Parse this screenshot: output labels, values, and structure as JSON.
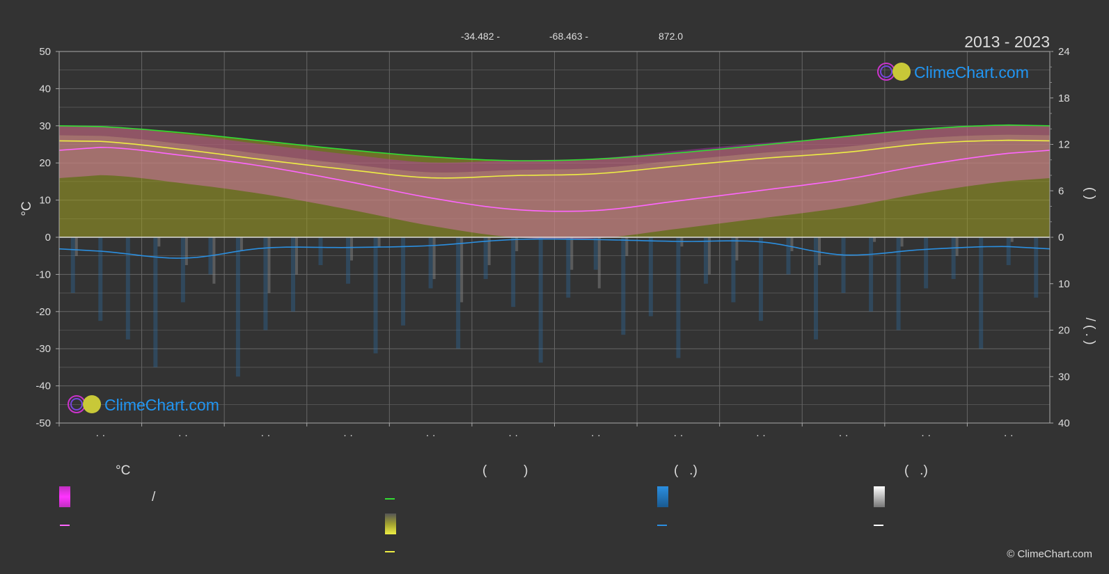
{
  "header": {
    "latitude": "-34.482 -",
    "longitude": "-68.463 -",
    "elevation": "872.0",
    "period": "2013 - 2023"
  },
  "brand": {
    "logo_text": "ClimeChart.com",
    "copyright": "© ClimeChart.com"
  },
  "colors": {
    "background": "#333333",
    "grid": "#666666",
    "sunshine_line": "#33dd33",
    "daylight_area": "#a0a020",
    "temp_line": "#ff66ff",
    "max_temp_line": "#eeee44",
    "precip_line": "#2b8fe0",
    "logo_blue": "#2196f3"
  },
  "legend": {
    "temp_heading": "°C",
    "sun_heading": "(          )",
    "rain_heading": "(   .)",
    "snow_heading": "(   .)",
    "range_slash": "/"
  },
  "chart_data": {
    "type": "area",
    "xlabel": "",
    "ylabel_left": "°C",
    "ylabel_right_upper": "(  )",
    "ylabel_right_lower": "/  (  .  )",
    "x_tick_labels": [
      "· ·",
      "· ·",
      "· ·",
      "· ·",
      "· ·",
      "· ·",
      "· ·",
      "· ·",
      "· ·",
      "· ·",
      "· ·",
      "· ·"
    ],
    "y_left_ticks": [
      50,
      40,
      30,
      20,
      10,
      0,
      -10,
      -20,
      -30,
      -40,
      -50
    ],
    "y_right_upper_ticks": [
      24,
      18,
      12,
      6,
      0
    ],
    "y_right_lower_ticks": [
      0,
      10,
      20,
      30,
      40
    ],
    "ylim_left": [
      -50,
      50
    ],
    "ylim_right_upper": [
      0,
      24
    ],
    "ylim_right_lower": [
      40,
      0
    ],
    "grid": true,
    "months_x": [
      0.5,
      1.5,
      2.5,
      3.5,
      4.5,
      5.5,
      6.5,
      7.5,
      8.5,
      9.5,
      10.5,
      11.5
    ],
    "series": [
      {
        "name": "",
        "unit": "°C",
        "values": [
          24.2,
          22.0,
          19.0,
          15.0,
          10.6,
          7.5,
          7.2,
          9.8,
          12.6,
          15.5,
          19.5,
          22.6
        ]
      },
      {
        "name": "",
        "unit": "°C",
        "values": [
          25.8,
          23.6,
          20.8,
          18.2,
          16.0,
          16.6,
          17.1,
          19.2,
          21.2,
          22.8,
          25.2,
          26.1
        ]
      },
      {
        "name": "",
        "unit": "hours",
        "values": [
          14.3,
          13.5,
          12.4,
          11.3,
          10.4,
          9.9,
          10.1,
          10.9,
          11.9,
          13.0,
          14.0,
          14.5
        ]
      },
      {
        "name": "",
        "unit": "mm",
        "values": [
          3.0,
          4.5,
          2.3,
          2.2,
          1.8,
          0.5,
          0.5,
          0.9,
          1.0,
          3.8,
          2.6,
          2.0
        ]
      }
    ],
    "precip_bars": [
      12,
      18,
      22,
      28,
      14,
      8,
      30,
      20,
      16,
      6,
      10,
      25,
      19,
      11,
      24,
      9,
      15,
      27,
      13,
      7,
      21,
      17,
      26,
      10,
      14,
      18,
      8,
      22,
      12,
      16,
      20,
      11,
      9,
      24,
      6,
      13
    ],
    "snow_bars": [
      4,
      0,
      0,
      2,
      6,
      10,
      3,
      12,
      8,
      0,
      5,
      2,
      0,
      9,
      14,
      6,
      3,
      0,
      7,
      11,
      4,
      0,
      2,
      8,
      5,
      0,
      3,
      6,
      0,
      1,
      2,
      0,
      4,
      0,
      1,
      0
    ]
  }
}
